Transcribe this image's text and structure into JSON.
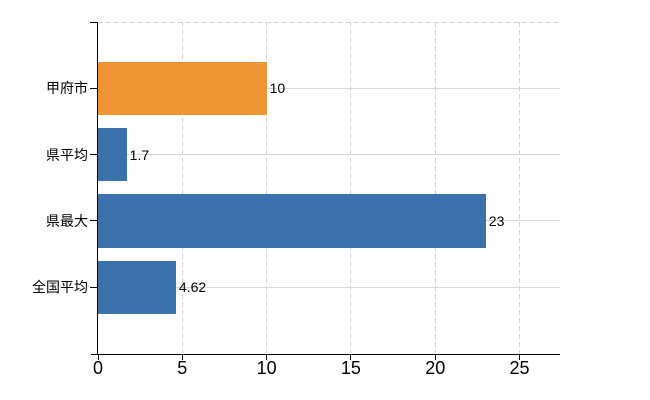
{
  "chart_data": {
    "type": "bar",
    "orientation": "horizontal",
    "categories": [
      "甲府市",
      "県平均",
      "県最大",
      "全国平均"
    ],
    "values": [
      10,
      1.7,
      23,
      4.62
    ],
    "value_labels": [
      "10",
      "1.7",
      "23",
      "4.62"
    ],
    "bar_colors": [
      "#EF9434",
      "#3B71AD",
      "#3B71AD",
      "#3B71AD"
    ],
    "x_axis": {
      "tick_values": [
        0,
        5,
        10,
        15,
        20,
        25
      ],
      "tick_labels": [
        "0",
        "5",
        "10",
        "15",
        "20",
        "25"
      ],
      "range": [
        0,
        27.4
      ]
    },
    "colors": {
      "highlight_bar": "#EF9434",
      "default_bar": "#3B71AD",
      "grid": "#D5D5D5",
      "axis": "#000000",
      "text": "#000000",
      "background": "#FFFFFF"
    },
    "grid": {
      "horizontal_style": "solid",
      "vertical_style": "dashed",
      "top_border_style": "dashed"
    },
    "legend": "none",
    "title": ""
  }
}
